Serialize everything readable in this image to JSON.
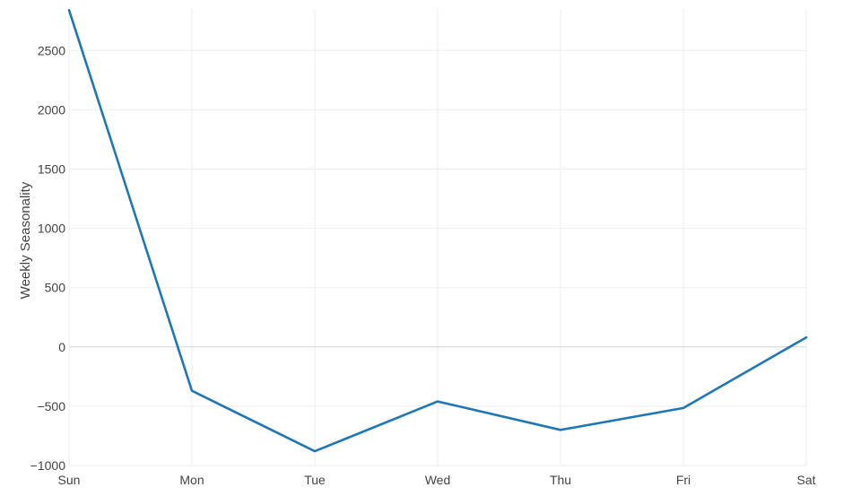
{
  "chart_data": {
    "type": "line",
    "title": "",
    "xlabel": "",
    "ylabel": "Weekly Seasonality",
    "categories": [
      "Sun",
      "Mon",
      "Tue",
      "Wed",
      "Thu",
      "Fri",
      "Sat"
    ],
    "series": [
      {
        "values": [
          2840,
          -370,
          -880,
          -460,
          -700,
          -515,
          80
        ]
      }
    ],
    "ylim": [
      -1000,
      2850
    ],
    "yticks": [
      -1000,
      -500,
      0,
      500,
      1000,
      1500,
      2000,
      2500
    ],
    "ytick_labels": [
      "−1000",
      "−500",
      "0",
      "500",
      "1000",
      "1500",
      "2000",
      "2500"
    ],
    "grid": true,
    "legend": "none",
    "colors": {
      "line": "#1f77b4",
      "grid": "#eeeeee",
      "zeroline": "#d6d6d6",
      "text": "#444444"
    }
  }
}
